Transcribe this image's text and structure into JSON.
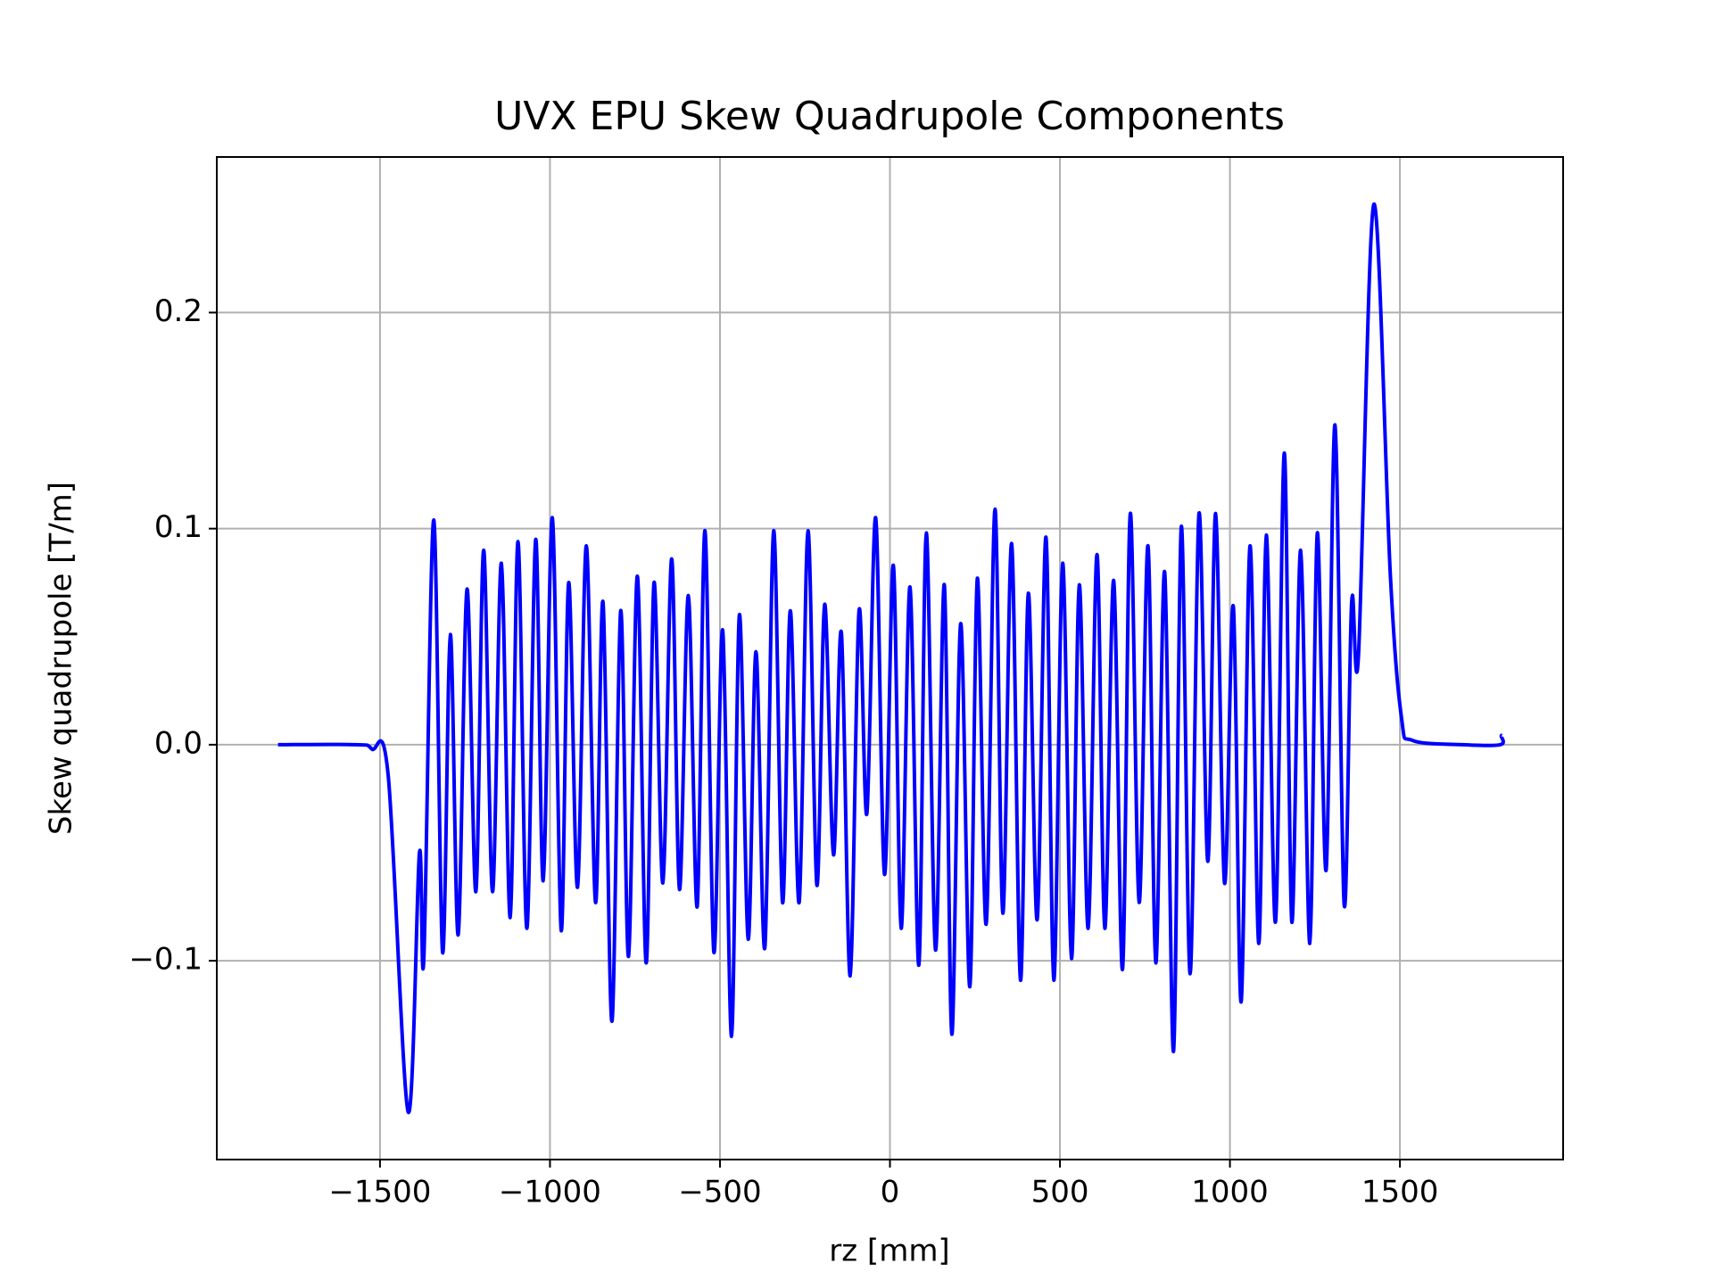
{
  "chart_data": {
    "type": "line",
    "title": "UVX EPU Skew Quadrupole Components",
    "x_label": "rz [mm]",
    "y_label": "Skew quadrupole [T/m]",
    "color": "#0000ff",
    "grid": true,
    "xlim": [
      -1980,
      1980
    ],
    "ylim": [
      -0.192,
      0.272
    ],
    "xticks": [
      {
        "value": -1500,
        "label": "−1500"
      },
      {
        "value": -1000,
        "label": "−1000"
      },
      {
        "value": -500,
        "label": "−500"
      },
      0,
      500,
      1000,
      1500
    ],
    "yticks": [
      {
        "value": -0.1,
        "label": "−0.1"
      },
      {
        "value": 0,
        "label": "0.0"
      },
      0.1,
      0.2
    ],
    "x": [
      -1800,
      -1573,
      -1524,
      -1476,
      -1417,
      -1384,
      -1371,
      -1342,
      -1316,
      -1293,
      -1270,
      -1244,
      -1218,
      -1195,
      -1169,
      -1143,
      -1117,
      -1094,
      -1068,
      -1042,
      -1020,
      -993,
      -967,
      -945,
      -919,
      -893,
      -866,
      -844,
      -818,
      -792,
      -769,
      -743,
      -717,
      -694,
      -668,
      -642,
      -619,
      -593,
      -567,
      -544,
      -518,
      -492,
      -466,
      -443,
      -417,
      -394,
      -368,
      -342,
      -316,
      -293,
      -267,
      -241,
      -215,
      -192,
      -166,
      -143,
      -117,
      -91,
      -68,
      -42,
      -16,
      10,
      33,
      59,
      85,
      107,
      134,
      160,
      182,
      208,
      235,
      257,
      283,
      309,
      332,
      358,
      384,
      407,
      433,
      459,
      482,
      508,
      534,
      557,
      583,
      609,
      632,
      658,
      684,
      707,
      733,
      759,
      782,
      808,
      834,
      857,
      883,
      909,
      935,
      958,
      984,
      1010,
      1033,
      1059,
      1085,
      1107,
      1134,
      1160,
      1182,
      1208,
      1235,
      1257,
      1283,
      1309,
      1336,
      1358,
      1378,
      1423,
      1472,
      1505,
      1537,
      1684,
      1795,
      1798,
      1800
    ],
    "values": [
      0,
      0,
      -0.002,
      -0.014,
      -0.17,
      -0.05,
      -0.099,
      0.104,
      -0.096,
      0.051,
      -0.088,
      0.072,
      -0.068,
      0.09,
      -0.068,
      0.084,
      -0.08,
      0.094,
      -0.085,
      0.095,
      -0.063,
      0.105,
      -0.086,
      0.075,
      -0.066,
      0.092,
      -0.073,
      0.066,
      -0.128,
      0.062,
      -0.098,
      0.078,
      -0.101,
      0.075,
      -0.064,
      0.086,
      -0.067,
      0.069,
      -0.075,
      0.099,
      -0.096,
      0.053,
      -0.135,
      0.06,
      -0.09,
      0.043,
      -0.094,
      0.099,
      -0.073,
      0.062,
      -0.073,
      0.099,
      -0.065,
      0.065,
      -0.051,
      0.052,
      -0.107,
      0.062,
      -0.032,
      0.105,
      -0.06,
      0.083,
      -0.085,
      0.073,
      -0.102,
      0.098,
      -0.095,
      0.074,
      -0.134,
      0.056,
      -0.112,
      0.077,
      -0.083,
      0.109,
      -0.078,
      0.093,
      -0.109,
      0.07,
      -0.081,
      0.096,
      -0.109,
      0.084,
      -0.099,
      0.074,
      -0.085,
      0.088,
      -0.085,
      0.076,
      -0.104,
      0.107,
      -0.073,
      0.092,
      -0.101,
      0.08,
      -0.142,
      0.101,
      -0.106,
      0.107,
      -0.054,
      0.107,
      -0.064,
      0.064,
      -0.119,
      0.092,
      -0.092,
      0.097,
      -0.082,
      0.135,
      -0.082,
      0.09,
      -0.092,
      0.098,
      -0.058,
      0.148,
      -0.074,
      0.066,
      0.041,
      0.25,
      0.078,
      0.012,
      0.002,
      0,
      0,
      0.004,
      0.004
    ]
  }
}
